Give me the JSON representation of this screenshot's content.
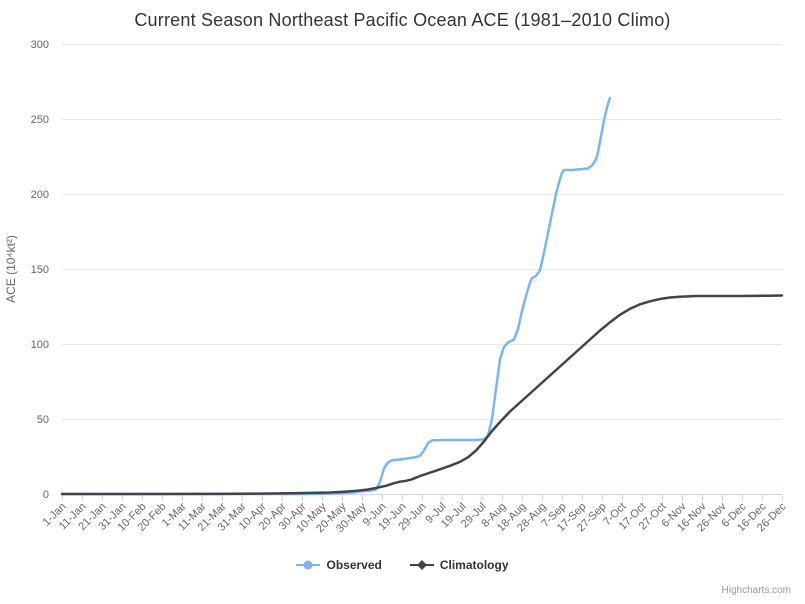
{
  "header": {
    "title": "Current Season Northeast Pacific Ocean ACE (1981–2010 Climo)"
  },
  "legend": {
    "items": [
      {
        "label": "Observed"
      },
      {
        "label": "Climatology"
      }
    ]
  },
  "credits": {
    "label": "Highcharts.com"
  },
  "colors": {
    "observed": "#7cb5ec",
    "climatology": "#434348",
    "gridline": "#e6e6e6",
    "axis_line": "#ccd6eb",
    "tick": "#ccd6eb",
    "title_text": "#333333",
    "axis_text": "#666666",
    "legend_text": "#333333",
    "credits_text": "#999999"
  },
  "chart_data": {
    "type": "line",
    "title": "Current Season Northeast Pacific Ocean ACE (1981–2010 Climo)",
    "xlabel": "",
    "ylabel": "ACE (10⁴kt²)",
    "ylim": [
      0,
      300
    ],
    "yticks": [
      0,
      50,
      100,
      150,
      200,
      250,
      300
    ],
    "x_range_day_of_year": [
      1,
      361
    ],
    "xtick_days_interval": 10,
    "xtick_labels": [
      "1-Jan",
      "11-Jan",
      "21-Jan",
      "31-Jan",
      "10-Feb",
      "20-Feb",
      "1-Mar",
      "11-Mar",
      "21-Mar",
      "31-Mar",
      "10-Apr",
      "20-Apr",
      "30-Apr",
      "10-May",
      "20-May",
      "30-May",
      "9-Jun",
      "19-Jun",
      "29-Jun",
      "9-Jul",
      "19-Jul",
      "29-Jul",
      "8-Aug",
      "18-Aug",
      "28-Aug",
      "7-Sep",
      "17-Sep",
      "27-Sep",
      "7-Oct",
      "17-Oct",
      "27-Oct",
      "6-Nov",
      "16-Nov",
      "26-Nov",
      "6-Dec",
      "16-Dec",
      "26-Dec"
    ],
    "grid": true,
    "legend_position": "bottom",
    "series": [
      {
        "name": "Observed",
        "color": "#7cb5ec",
        "marker": "circle",
        "points": [
          [
            1,
            0
          ],
          [
            30,
            0
          ],
          [
            60,
            0
          ],
          [
            90,
            0
          ],
          [
            120,
            0
          ],
          [
            132,
            0.2
          ],
          [
            140,
            0.5
          ],
          [
            146,
            1
          ],
          [
            151,
            1.8
          ],
          [
            155,
            2.3
          ],
          [
            158,
            3
          ],
          [
            160,
            8
          ],
          [
            162,
            17
          ],
          [
            164,
            21
          ],
          [
            166,
            22.5
          ],
          [
            170,
            23
          ],
          [
            174,
            23.8
          ],
          [
            178,
            24.6
          ],
          [
            180,
            25.5
          ],
          [
            182,
            29
          ],
          [
            184,
            34
          ],
          [
            186,
            35.7
          ],
          [
            192,
            36
          ],
          [
            200,
            36
          ],
          [
            208,
            36
          ],
          [
            212,
            36.5
          ],
          [
            214,
            39
          ],
          [
            216,
            50
          ],
          [
            218,
            70
          ],
          [
            220,
            90
          ],
          [
            222,
            98
          ],
          [
            224,
            101
          ],
          [
            227,
            103
          ],
          [
            229,
            110
          ],
          [
            231,
            122
          ],
          [
            233,
            132
          ],
          [
            235,
            141
          ],
          [
            236,
            144
          ],
          [
            238,
            145.5
          ],
          [
            240,
            149
          ],
          [
            242,
            161
          ],
          [
            244,
            174
          ],
          [
            246,
            187
          ],
          [
            248,
            200
          ],
          [
            250,
            210
          ],
          [
            251,
            214
          ],
          [
            252,
            216
          ],
          [
            256,
            216
          ],
          [
            260,
            216.5
          ],
          [
            264,
            217
          ],
          [
            266,
            219
          ],
          [
            268,
            223
          ],
          [
            269,
            228
          ],
          [
            270,
            235
          ],
          [
            271,
            242
          ],
          [
            272,
            249
          ],
          [
            273,
            255
          ],
          [
            274,
            260
          ],
          [
            275,
            264
          ]
        ]
      },
      {
        "name": "Climatology",
        "color": "#434348",
        "marker": "diamond",
        "points": [
          [
            1,
            0
          ],
          [
            40,
            0
          ],
          [
            80,
            0.1
          ],
          [
            100,
            0.3
          ],
          [
            115,
            0.5
          ],
          [
            125,
            0.7
          ],
          [
            135,
            1
          ],
          [
            142,
            1.5
          ],
          [
            148,
            2.1
          ],
          [
            153,
            2.8
          ],
          [
            158,
            4
          ],
          [
            163,
            5.5
          ],
          [
            167,
            7.2
          ],
          [
            170,
            8.2
          ],
          [
            173,
            8.8
          ],
          [
            176,
            9.8
          ],
          [
            180,
            12
          ],
          [
            185,
            14.2
          ],
          [
            190,
            16.5
          ],
          [
            195,
            18.8
          ],
          [
            200,
            21.5
          ],
          [
            204,
            24.5
          ],
          [
            208,
            29
          ],
          [
            212,
            35
          ],
          [
            216,
            42
          ],
          [
            220,
            48
          ],
          [
            225,
            55
          ],
          [
            230,
            61
          ],
          [
            235,
            67
          ],
          [
            240,
            73
          ],
          [
            245,
            79
          ],
          [
            250,
            85
          ],
          [
            255,
            91
          ],
          [
            260,
            97
          ],
          [
            265,
            103
          ],
          [
            270,
            109
          ],
          [
            275,
            114.5
          ],
          [
            280,
            119.5
          ],
          [
            285,
            123.5
          ],
          [
            290,
            126.5
          ],
          [
            295,
            128.5
          ],
          [
            300,
            130
          ],
          [
            305,
            131
          ],
          [
            310,
            131.5
          ],
          [
            318,
            132
          ],
          [
            330,
            132
          ],
          [
            342,
            132
          ],
          [
            354,
            132.2
          ],
          [
            361,
            132.3
          ]
        ]
      }
    ]
  }
}
